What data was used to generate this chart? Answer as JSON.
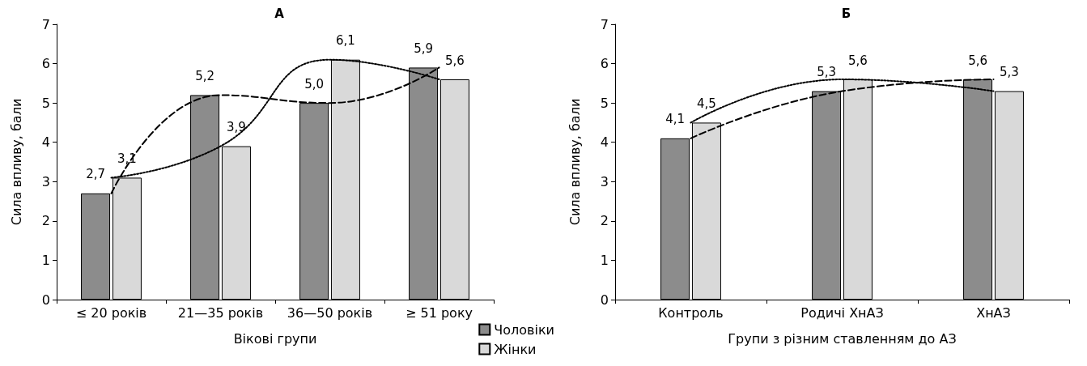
{
  "chart_data": [
    {
      "type": "bar",
      "title": "А",
      "xlabel": "Вікові групи",
      "ylabel": "Сила впливу, бали",
      "categories": [
        "≤ 20 років",
        "21—35 років",
        "36—50 років",
        "≥ 51 року"
      ],
      "series": [
        {
          "name": "Чоловіки",
          "color": "#8c8c8c",
          "values": [
            2.7,
            5.2,
            5.0,
            5.9
          ],
          "value_labels": [
            "2,7",
            "5,2",
            "5,0",
            "5,9"
          ]
        },
        {
          "name": "Жінки",
          "color": "#d9d9d9",
          "values": [
            3.1,
            3.9,
            6.1,
            5.6
          ],
          "value_labels": [
            "3,1",
            "3,9",
            "6,1",
            "5,6"
          ]
        },
        {
          "type": "line",
          "color": "#000000",
          "line_style": "dashed",
          "x": [
            "≤ 20 років",
            "21—35 років",
            "36—50 років",
            "≥ 51 року"
          ],
          "values": [
            2.7,
            5.2,
            5.0,
            5.9
          ]
        },
        {
          "type": "line",
          "color": "#000000",
          "line_style": "dotted",
          "x": [
            "≤ 20 років",
            "21—35 років",
            "36—50 років",
            "≥ 51 року"
          ],
          "values": [
            3.1,
            3.9,
            6.1,
            5.6
          ]
        }
      ],
      "ylim": [
        0,
        7
      ],
      "yticks": [
        0,
        1,
        2,
        3,
        4,
        5,
        6,
        7
      ],
      "grid": false,
      "legend": "bottom right",
      "marker": "none"
    },
    {
      "type": "bar",
      "title": "Б",
      "xlabel": "Групи з різним ставленням до АЗ",
      "ylabel": "Сила впливу, бали",
      "categories": [
        "Контроль",
        "Родичі ХнАЗ",
        "ХнАЗ"
      ],
      "series": [
        {
          "color": "#8c8c8c",
          "values": [
            4.1,
            5.3,
            5.6
          ],
          "value_labels": [
            "4,1",
            "5,3",
            "5,6"
          ]
        },
        {
          "color": "#d9d9d9",
          "values": [
            4.5,
            5.6,
            5.3
          ],
          "value_labels": [
            "4,5",
            "5,6",
            "5,3"
          ]
        },
        {
          "type": "line",
          "color": "#000000",
          "line_style": "dashed",
          "x": [
            "Контроль",
            "Родичі ХнАЗ",
            "ХнАЗ"
          ],
          "values": [
            4.1,
            5.3,
            5.6
          ]
        },
        {
          "type": "line",
          "color": "#000000",
          "line_style": "dotted",
          "x": [
            "Контроль",
            "Родичі ХнАЗ",
            "ХнАЗ"
          ],
          "values": [
            4.5,
            5.6,
            5.3
          ]
        }
      ],
      "ylim": [
        0,
        7
      ],
      "yticks": [
        0,
        1,
        2,
        3,
        4,
        5,
        6,
        7
      ],
      "grid": false,
      "legend": false,
      "marker": "none"
    }
  ]
}
